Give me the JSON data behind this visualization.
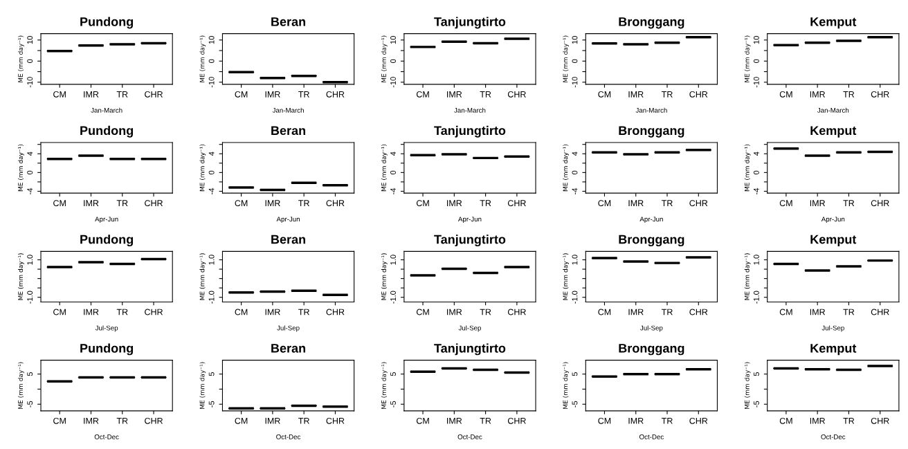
{
  "chart_data": [
    {
      "type": "box",
      "title": "Pundong",
      "xlabel": "Jan-March",
      "ylabel": "ME (mm day⁻¹)",
      "categories": [
        "CM",
        "IMR",
        "TR",
        "CHR"
      ],
      "boxes": [
        {
          "low": 4.8,
          "q1": 4.8,
          "median": 4.8,
          "q3": 4.8,
          "high": 4.8
        },
        {
          "low": 7.4,
          "q1": 7.4,
          "median": 7.4,
          "q3": 7.4,
          "high": 7.4
        },
        {
          "low": 8.0,
          "q1": 8.0,
          "median": 8.0,
          "q3": 8.0,
          "high": 8.0
        },
        {
          "low": 8.5,
          "q1": 8.5,
          "median": 8.5,
          "q3": 8.5,
          "high": 8.5
        }
      ],
      "ylim": [
        -11,
        13
      ],
      "yticks": [
        -10,
        {
          "value": -5,
          "label": null
        },
        0,
        {
          "value": 5,
          "label": null
        },
        10
      ]
    },
    {
      "type": "box",
      "title": "Beran",
      "xlabel": "Jan-March",
      "ylabel": "ME (mm day⁻¹)",
      "categories": [
        "CM",
        "IMR",
        "TR",
        "CHR"
      ],
      "boxes": [
        {
          "low": -5.2,
          "q1": -5.2,
          "median": -5.2,
          "q3": -5.2,
          "high": -5.2
        },
        {
          "low": -8.0,
          "q1": -8.0,
          "median": -8.0,
          "q3": -8.0,
          "high": -8.0
        },
        {
          "low": -7.0,
          "q1": -7.0,
          "median": -7.0,
          "q3": -7.0,
          "high": -7.0
        },
        {
          "low": -10.0,
          "q1": -10.0,
          "median": -10.0,
          "q3": -10.0,
          "high": -10.0
        }
      ],
      "ylim": [
        -11,
        13
      ],
      "yticks": [
        -10,
        {
          "value": -5,
          "label": null
        },
        0,
        {
          "value": 5,
          "label": null
        },
        10
      ]
    },
    {
      "type": "box",
      "title": "Tanjungtirto",
      "xlabel": "Jan-March",
      "ylabel": "ME (mm day⁻¹)",
      "categories": [
        "CM",
        "IMR",
        "TR",
        "CHR"
      ],
      "boxes": [
        {
          "low": 6.7,
          "q1": 6.7,
          "median": 6.7,
          "q3": 6.7,
          "high": 6.7
        },
        {
          "low": 9.2,
          "q1": 9.2,
          "median": 9.2,
          "q3": 9.2,
          "high": 9.2
        },
        {
          "low": 8.5,
          "q1": 8.5,
          "median": 8.5,
          "q3": 8.5,
          "high": 8.5
        },
        {
          "low": 10.6,
          "q1": 10.6,
          "median": 10.6,
          "q3": 10.6,
          "high": 10.6
        }
      ],
      "ylim": [
        -11,
        13
      ],
      "yticks": [
        -10,
        {
          "value": -5,
          "label": null
        },
        0,
        {
          "value": 5,
          "label": null
        },
        10
      ]
    },
    {
      "type": "box",
      "title": "Bronggang",
      "xlabel": "Jan-March",
      "ylabel": "ME (mm day⁻¹)",
      "categories": [
        "CM",
        "IMR",
        "TR",
        "CHR"
      ],
      "boxes": [
        {
          "low": 8.4,
          "q1": 8.4,
          "median": 8.4,
          "q3": 8.4,
          "high": 8.4
        },
        {
          "low": 8.0,
          "q1": 8.0,
          "median": 8.0,
          "q3": 8.0,
          "high": 8.0
        },
        {
          "low": 8.7,
          "q1": 8.7,
          "median": 8.7,
          "q3": 8.7,
          "high": 8.7
        },
        {
          "low": 11.3,
          "q1": 11.3,
          "median": 11.3,
          "q3": 11.3,
          "high": 11.3
        }
      ],
      "ylim": [
        -11,
        13
      ],
      "yticks": [
        -10,
        {
          "value": -5,
          "label": null
        },
        0,
        {
          "value": 5,
          "label": null
        },
        10
      ]
    },
    {
      "type": "box",
      "title": "Kemput",
      "xlabel": "Jan-March",
      "ylabel": "ME (mm day⁻¹)",
      "categories": [
        "CM",
        "IMR",
        "TR",
        "CHR"
      ],
      "boxes": [
        {
          "low": 7.6,
          "q1": 7.6,
          "median": 7.6,
          "q3": 7.6,
          "high": 7.6
        },
        {
          "low": 8.7,
          "q1": 8.7,
          "median": 8.7,
          "q3": 8.7,
          "high": 8.7
        },
        {
          "low": 9.6,
          "q1": 9.6,
          "median": 9.6,
          "q3": 9.6,
          "high": 9.6
        },
        {
          "low": 11.3,
          "q1": 11.3,
          "median": 11.3,
          "q3": 11.3,
          "high": 11.3
        }
      ],
      "ylim": [
        -11,
        13
      ],
      "yticks": [
        -10,
        {
          "value": -5,
          "label": null
        },
        0,
        {
          "value": 5,
          "label": null
        },
        10
      ]
    },
    {
      "type": "box",
      "title": "Pundong",
      "xlabel": "Apr-Jun",
      "ylabel": "ME (mm day⁻¹)",
      "categories": [
        "CM",
        "IMR",
        "TR",
        "CHR"
      ],
      "boxes": [
        {
          "low": 2.9,
          "q1": 2.9,
          "median": 2.9,
          "q3": 2.9,
          "high": 2.9
        },
        {
          "low": 3.6,
          "q1": 3.6,
          "median": 3.6,
          "q3": 3.6,
          "high": 3.6
        },
        {
          "low": 2.9,
          "q1": 2.9,
          "median": 2.9,
          "q3": 2.9,
          "high": 2.9
        },
        {
          "low": 2.9,
          "q1": 2.9,
          "median": 2.9,
          "q3": 2.9,
          "high": 2.9
        }
      ],
      "ylim": [
        -4.4,
        6.4
      ],
      "yticks": [
        -4,
        {
          "value": -2,
          "label": null
        },
        0,
        {
          "value": 2,
          "label": null
        },
        4,
        {
          "value": 6,
          "label": null
        }
      ]
    },
    {
      "type": "box",
      "title": "Beran",
      "xlabel": "Apr-Jun",
      "ylabel": "ME (mm day⁻¹)",
      "categories": [
        "CM",
        "IMR",
        "TR",
        "CHR"
      ],
      "boxes": [
        {
          "low": -3.2,
          "q1": -3.2,
          "median": -3.2,
          "q3": -3.2,
          "high": -3.2
        },
        {
          "low": -3.7,
          "q1": -3.7,
          "median": -3.7,
          "q3": -3.7,
          "high": -3.7
        },
        {
          "low": -2.2,
          "q1": -2.2,
          "median": -2.2,
          "q3": -2.2,
          "high": -2.2
        },
        {
          "low": -2.7,
          "q1": -2.7,
          "median": -2.7,
          "q3": -2.7,
          "high": -2.7
        }
      ],
      "ylim": [
        -4.4,
        6.4
      ],
      "yticks": [
        -4,
        {
          "value": -2,
          "label": null
        },
        0,
        {
          "value": 2,
          "label": null
        },
        4,
        {
          "value": 6,
          "label": null
        }
      ]
    },
    {
      "type": "box",
      "title": "Tanjungtirto",
      "xlabel": "Apr-Jun",
      "ylabel": "ME (mm day⁻¹)",
      "categories": [
        "CM",
        "IMR",
        "TR",
        "CHR"
      ],
      "boxes": [
        {
          "low": 3.7,
          "q1": 3.7,
          "median": 3.7,
          "q3": 3.7,
          "high": 3.7
        },
        {
          "low": 3.9,
          "q1": 3.9,
          "median": 3.9,
          "q3": 3.9,
          "high": 3.9
        },
        {
          "low": 3.1,
          "q1": 3.1,
          "median": 3.1,
          "q3": 3.1,
          "high": 3.1
        },
        {
          "low": 3.4,
          "q1": 3.4,
          "median": 3.4,
          "q3": 3.4,
          "high": 3.4
        }
      ],
      "ylim": [
        -4.4,
        6.4
      ],
      "yticks": [
        -4,
        {
          "value": -2,
          "label": null
        },
        0,
        {
          "value": 2,
          "label": null
        },
        4,
        {
          "value": 6,
          "label": null
        }
      ]
    },
    {
      "type": "box",
      "title": "Bronggang",
      "xlabel": "Apr-Jun",
      "ylabel": "ME (mm day⁻¹)",
      "categories": [
        "CM",
        "IMR",
        "TR",
        "CHR"
      ],
      "boxes": [
        {
          "low": 4.3,
          "q1": 4.3,
          "median": 4.3,
          "q3": 4.3,
          "high": 4.3
        },
        {
          "low": 3.9,
          "q1": 3.9,
          "median": 3.9,
          "q3": 3.9,
          "high": 3.9
        },
        {
          "low": 4.3,
          "q1": 4.3,
          "median": 4.3,
          "q3": 4.3,
          "high": 4.3
        },
        {
          "low": 4.8,
          "q1": 4.8,
          "median": 4.8,
          "q3": 4.8,
          "high": 4.8
        }
      ],
      "ylim": [
        -4.4,
        6.4
      ],
      "yticks": [
        -4,
        {
          "value": -2,
          "label": null
        },
        0,
        {
          "value": 2,
          "label": null
        },
        4,
        {
          "value": 6,
          "label": null
        }
      ]
    },
    {
      "type": "box",
      "title": "Kemput",
      "xlabel": "Apr-Jun",
      "ylabel": "ME (mm day⁻¹)",
      "categories": [
        "CM",
        "IMR",
        "TR",
        "CHR"
      ],
      "boxes": [
        {
          "low": 5.1,
          "q1": 5.1,
          "median": 5.1,
          "q3": 5.1,
          "high": 5.1
        },
        {
          "low": 3.6,
          "q1": 3.6,
          "median": 3.6,
          "q3": 3.6,
          "high": 3.6
        },
        {
          "low": 4.3,
          "q1": 4.3,
          "median": 4.3,
          "q3": 4.3,
          "high": 4.3
        },
        {
          "low": 4.4,
          "q1": 4.4,
          "median": 4.4,
          "q3": 4.4,
          "high": 4.4
        }
      ],
      "ylim": [
        -4.4,
        6.4
      ],
      "yticks": [
        -4,
        {
          "value": -2,
          "label": null
        },
        0,
        {
          "value": 2,
          "label": null
        },
        4,
        {
          "value": 6,
          "label": null
        }
      ]
    },
    {
      "type": "box",
      "title": "Pundong",
      "xlabel": "Jul-Sep",
      "ylabel": "ME (mm day⁻¹)",
      "categories": [
        "CM",
        "IMR",
        "TR",
        "CHR"
      ],
      "boxes": [
        {
          "low": 0.61,
          "q1": 0.61,
          "median": 0.61,
          "q3": 0.61,
          "high": 0.61
        },
        {
          "low": 0.87,
          "q1": 0.87,
          "median": 0.87,
          "q3": 0.87,
          "high": 0.87
        },
        {
          "low": 0.78,
          "q1": 0.78,
          "median": 0.78,
          "q3": 0.78,
          "high": 0.78
        },
        {
          "low": 1.04,
          "q1": 1.04,
          "median": 1.04,
          "q3": 1.04,
          "high": 1.04
        }
      ],
      "ylim": [
        -1.25,
        1.45
      ],
      "yticks": [
        {
          "value": -1,
          "label": "-1.0"
        },
        {
          "value": -0.5,
          "label": null
        },
        {
          "value": 0,
          "label": null
        },
        {
          "value": 0.5,
          "label": null
        },
        {
          "value": 1,
          "label": "1.0"
        }
      ]
    },
    {
      "type": "box",
      "title": "Beran",
      "xlabel": "Jul-Sep",
      "ylabel": "ME (mm day⁻¹)",
      "categories": [
        "CM",
        "IMR",
        "TR",
        "CHR"
      ],
      "boxes": [
        {
          "low": -0.74,
          "q1": -0.74,
          "median": -0.74,
          "q3": -0.74,
          "high": -0.74
        },
        {
          "low": -0.7,
          "q1": -0.7,
          "median": -0.7,
          "q3": -0.7,
          "high": -0.7
        },
        {
          "low": -0.65,
          "q1": -0.65,
          "median": -0.65,
          "q3": -0.65,
          "high": -0.65
        },
        {
          "low": -0.87,
          "q1": -0.87,
          "median": -0.87,
          "q3": -0.87,
          "high": -0.87
        }
      ],
      "ylim": [
        -1.25,
        1.45
      ],
      "yticks": [
        {
          "value": -1,
          "label": "-1.0"
        },
        {
          "value": -0.5,
          "label": null
        },
        {
          "value": 0,
          "label": null
        },
        {
          "value": 0.5,
          "label": null
        },
        {
          "value": 1,
          "label": "1.0"
        }
      ]
    },
    {
      "type": "box",
      "title": "Tanjungtirto",
      "xlabel": "Jul-Sep",
      "ylabel": "ME (mm day⁻¹)",
      "categories": [
        "CM",
        "IMR",
        "TR",
        "CHR"
      ],
      "boxes": [
        {
          "low": 0.17,
          "q1": 0.17,
          "median": 0.17,
          "q3": 0.17,
          "high": 0.17
        },
        {
          "low": 0.52,
          "q1": 0.52,
          "median": 0.52,
          "q3": 0.52,
          "high": 0.52
        },
        {
          "low": 0.3,
          "q1": 0.3,
          "median": 0.3,
          "q3": 0.3,
          "high": 0.3
        },
        {
          "low": 0.61,
          "q1": 0.61,
          "median": 0.61,
          "q3": 0.61,
          "high": 0.61
        }
      ],
      "ylim": [
        -1.25,
        1.45
      ],
      "yticks": [
        {
          "value": -1,
          "label": "-1.0"
        },
        {
          "value": -0.5,
          "label": null
        },
        {
          "value": 0,
          "label": null
        },
        {
          "value": 0.5,
          "label": null
        },
        {
          "value": 1,
          "label": "1.0"
        }
      ]
    },
    {
      "type": "box",
      "title": "Bronggang",
      "xlabel": "Jul-Sep",
      "ylabel": "ME (mm day⁻¹)",
      "categories": [
        "CM",
        "IMR",
        "TR",
        "CHR"
      ],
      "boxes": [
        {
          "low": 1.09,
          "q1": 1.09,
          "median": 1.09,
          "q3": 1.09,
          "high": 1.09
        },
        {
          "low": 0.91,
          "q1": 0.91,
          "median": 0.91,
          "q3": 0.91,
          "high": 0.91
        },
        {
          "low": 0.83,
          "q1": 0.83,
          "median": 0.83,
          "q3": 0.83,
          "high": 0.83
        },
        {
          "low": 1.13,
          "q1": 1.13,
          "median": 1.13,
          "q3": 1.13,
          "high": 1.13
        }
      ],
      "ylim": [
        -1.25,
        1.45
      ],
      "yticks": [
        {
          "value": -1,
          "label": "-1.0"
        },
        {
          "value": -0.5,
          "label": null
        },
        {
          "value": 0,
          "label": null
        },
        {
          "value": 0.5,
          "label": null
        },
        {
          "value": 1,
          "label": "1.0"
        }
      ]
    },
    {
      "type": "box",
      "title": "Kemput",
      "xlabel": "Jul-Sep",
      "ylabel": "ME (mm day⁻¹)",
      "categories": [
        "CM",
        "IMR",
        "TR",
        "CHR"
      ],
      "boxes": [
        {
          "low": 0.78,
          "q1": 0.78,
          "median": 0.78,
          "q3": 0.78,
          "high": 0.78
        },
        {
          "low": 0.43,
          "q1": 0.43,
          "median": 0.43,
          "q3": 0.43,
          "high": 0.43
        },
        {
          "low": 0.65,
          "q1": 0.65,
          "median": 0.65,
          "q3": 0.65,
          "high": 0.65
        },
        {
          "low": 0.96,
          "q1": 0.96,
          "median": 0.96,
          "q3": 0.96,
          "high": 0.96
        }
      ],
      "ylim": [
        -1.25,
        1.45
      ],
      "yticks": [
        {
          "value": -1,
          "label": "-1.0"
        },
        {
          "value": -0.5,
          "label": null
        },
        {
          "value": 0,
          "label": null
        },
        {
          "value": 0.5,
          "label": null
        },
        {
          "value": 1,
          "label": "1.0"
        }
      ]
    },
    {
      "type": "box",
      "title": "Pundong",
      "xlabel": "Oct-Dec",
      "ylabel": "ME (mm day⁻¹)",
      "categories": [
        "CM",
        "IMR",
        "TR",
        "CHR"
      ],
      "boxes": [
        {
          "low": 2.6,
          "q1": 2.6,
          "median": 2.6,
          "q3": 2.6,
          "high": 2.6
        },
        {
          "low": 3.9,
          "q1": 3.9,
          "median": 3.9,
          "q3": 3.9,
          "high": 3.9
        },
        {
          "low": 3.9,
          "q1": 3.9,
          "median": 3.9,
          "q3": 3.9,
          "high": 3.9
        },
        {
          "low": 3.9,
          "q1": 3.9,
          "median": 3.9,
          "q3": 3.9,
          "high": 3.9
        }
      ],
      "ylim": [
        -7.2,
        9.6
      ],
      "yticks": [
        -5,
        {
          "value": 0,
          "label": null
        },
        5
      ]
    },
    {
      "type": "box",
      "title": "Beran",
      "xlabel": "Oct-Dec",
      "ylabel": "ME (mm day⁻¹)",
      "categories": [
        "CM",
        "IMR",
        "TR",
        "CHR"
      ],
      "boxes": [
        {
          "low": -6.4,
          "q1": -6.4,
          "median": -6.4,
          "q3": -6.4,
          "high": -6.4
        },
        {
          "low": -6.4,
          "q1": -6.4,
          "median": -6.4,
          "q3": -6.4,
          "high": -6.4
        },
        {
          "low": -5.5,
          "q1": -5.5,
          "median": -5.5,
          "q3": -5.5,
          "high": -5.5
        },
        {
          "low": -5.8,
          "q1": -5.8,
          "median": -5.8,
          "q3": -5.8,
          "high": -5.8
        }
      ],
      "ylim": [
        -7.2,
        9.6
      ],
      "yticks": [
        -5,
        {
          "value": 0,
          "label": null
        },
        5
      ]
    },
    {
      "type": "box",
      "title": "Tanjungtirto",
      "xlabel": "Oct-Dec",
      "ylabel": "ME (mm day⁻¹)",
      "categories": [
        "CM",
        "IMR",
        "TR",
        "CHR"
      ],
      "boxes": [
        {
          "low": 5.8,
          "q1": 5.8,
          "median": 5.8,
          "q3": 5.8,
          "high": 5.8
        },
        {
          "low": 6.9,
          "q1": 6.9,
          "median": 6.9,
          "q3": 6.9,
          "high": 6.9
        },
        {
          "low": 6.4,
          "q1": 6.4,
          "median": 6.4,
          "q3": 6.4,
          "high": 6.4
        },
        {
          "low": 5.5,
          "q1": 5.5,
          "median": 5.5,
          "q3": 5.5,
          "high": 5.5
        }
      ],
      "ylim": [
        -7.2,
        9.6
      ],
      "yticks": [
        -5,
        {
          "value": 0,
          "label": null
        },
        5
      ]
    },
    {
      "type": "box",
      "title": "Bronggang",
      "xlabel": "Oct-Dec",
      "ylabel": "ME (mm day⁻¹)",
      "categories": [
        "CM",
        "IMR",
        "TR",
        "CHR"
      ],
      "boxes": [
        {
          "low": 4.2,
          "q1": 4.2,
          "median": 4.2,
          "q3": 4.2,
          "high": 4.2
        },
        {
          "low": 5.0,
          "q1": 5.0,
          "median": 5.0,
          "q3": 5.0,
          "high": 5.0
        },
        {
          "low": 5.0,
          "q1": 5.0,
          "median": 5.0,
          "q3": 5.0,
          "high": 5.0
        },
        {
          "low": 6.6,
          "q1": 6.6,
          "median": 6.6,
          "q3": 6.6,
          "high": 6.6
        }
      ],
      "ylim": [
        -7.2,
        9.6
      ],
      "yticks": [
        -5,
        {
          "value": 0,
          "label": null
        },
        5
      ]
    },
    {
      "type": "box",
      "title": "Kemput",
      "xlabel": "Oct-Dec",
      "ylabel": "ME (mm day⁻¹)",
      "categories": [
        "CM",
        "IMR",
        "TR",
        "CHR"
      ],
      "boxes": [
        {
          "low": 6.9,
          "q1": 6.9,
          "median": 6.9,
          "q3": 6.9,
          "high": 6.9
        },
        {
          "low": 6.6,
          "q1": 6.6,
          "median": 6.6,
          "q3": 6.6,
          "high": 6.6
        },
        {
          "low": 6.4,
          "q1": 6.4,
          "median": 6.4,
          "q3": 6.4,
          "high": 6.4
        },
        {
          "low": 7.7,
          "q1": 7.7,
          "median": 7.7,
          "q3": 7.7,
          "high": 7.7
        }
      ],
      "ylim": [
        -7.2,
        9.6
      ],
      "yticks": [
        -5,
        {
          "value": 0,
          "label": null
        },
        5
      ]
    }
  ]
}
